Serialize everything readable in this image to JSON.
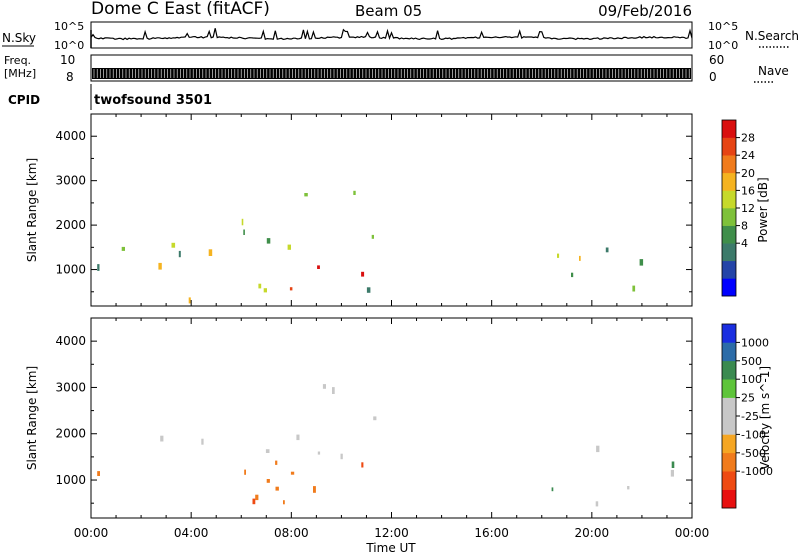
{
  "header": {
    "title": "Dome C East (fitACF)",
    "beam": "Beam 05",
    "date": "09/Feb/2016"
  },
  "noise_panel": {
    "left_label": "N.Sky",
    "right_label": "N.Search",
    "left_ticks": [
      "10^5",
      "10^0"
    ],
    "right_ticks": [
      "10^5",
      "10^0"
    ]
  },
  "freq_panel": {
    "left_label_line1": "Freq.",
    "left_label_line2": "[MHz]",
    "left_ticks": [
      "10",
      "8"
    ],
    "right_label": "Nave",
    "right_ticks": [
      "60",
      "0"
    ]
  },
  "cpid_panel": {
    "label": "CPID",
    "text": "twofsound 3501"
  },
  "x_axis": {
    "label": "Time UT",
    "ticks": [
      "00:00",
      "04:00",
      "08:00",
      "12:00",
      "16:00",
      "20:00",
      "00:00"
    ]
  },
  "chart_data": [
    {
      "type": "heatmap",
      "name": "power",
      "ylabel": "Slant Range [km]",
      "yticks": [
        1000,
        2000,
        3000,
        4000
      ],
      "ylim": [
        180,
        4500
      ],
      "xlim_hours": [
        0,
        24
      ],
      "colorbar": {
        "label": "Power [dB]",
        "ticks": [
          "28",
          "24",
          "20",
          "16",
          "12",
          "8",
          "4"
        ],
        "colors": [
          "#0000ff",
          "#2444a8",
          "#3c7a6a",
          "#3f8e4a",
          "#7ec13a",
          "#c6d92b",
          "#f5b320",
          "#f07b1c",
          "#e64414",
          "#d90f0f"
        ]
      }
    },
    {
      "type": "heatmap",
      "name": "velocity",
      "ylabel": "Slant Range [km]",
      "yticks": [
        1000,
        2000,
        3000,
        4000
      ],
      "ylim": [
        180,
        4500
      ],
      "xlim_hours": [
        0,
        24
      ],
      "colorbar": {
        "label": "Velocity [m s^-1]",
        "ticks": [
          "1000",
          "500",
          "100",
          "25",
          "-25",
          "-100",
          "-500",
          "-1000"
        ],
        "colors": [
          "#e81010",
          "#ee4a12",
          "#f07b1c",
          "#f5a623",
          "#c8c8c8",
          "#c8c8c8",
          "#5ec43a",
          "#3a8a50",
          "#2c6ca8",
          "#1a2ee0"
        ]
      }
    }
  ]
}
